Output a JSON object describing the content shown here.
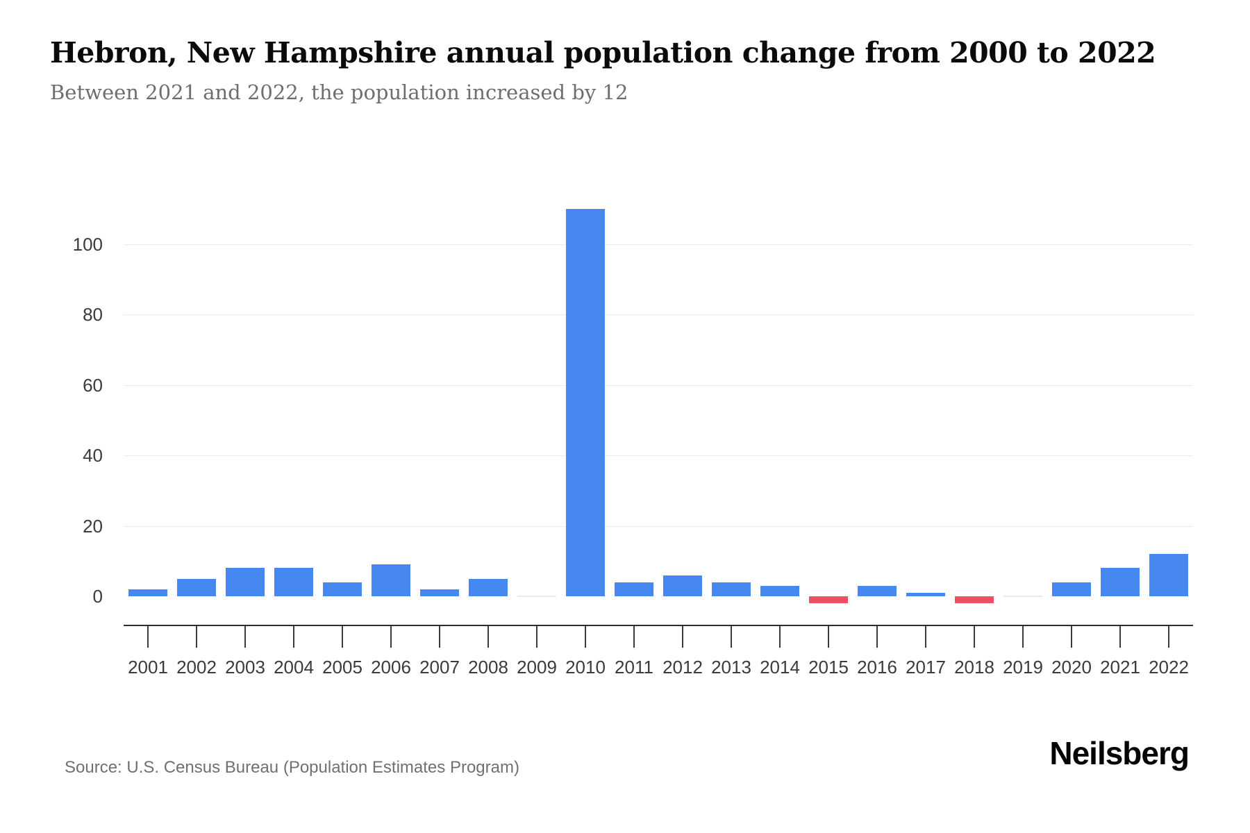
{
  "header": {
    "title": "Hebron, New Hampshire annual population change from 2000 to 2022",
    "subtitle": "Between 2021 and 2022, the population increased by 12"
  },
  "chart_data": {
    "type": "bar",
    "title": "Hebron, New Hampshire annual population change from 2000 to 2022",
    "xlabel": "",
    "ylabel": "",
    "categories": [
      "2001",
      "2002",
      "2003",
      "2004",
      "2005",
      "2006",
      "2007",
      "2008",
      "2009",
      "2010",
      "2011",
      "2012",
      "2013",
      "2014",
      "2015",
      "2016",
      "2017",
      "2018",
      "2019",
      "2020",
      "2021",
      "2022"
    ],
    "values": [
      2,
      5,
      8,
      8,
      4,
      9,
      2,
      5,
      0,
      110,
      4,
      6,
      4,
      3,
      -2,
      3,
      1,
      -2,
      0,
      4,
      8,
      12
    ],
    "yticks": [
      0,
      20,
      40,
      60,
      80,
      100
    ],
    "ylim": [
      -10,
      115
    ],
    "grid": "horizontal-light",
    "legend": "none",
    "colors": {
      "positive_bar": "#4687F0",
      "negative_bar": "#F04E63",
      "zero_bar": "#e9e9e9",
      "gridline": "#ebebeb",
      "axis": "#2e2e2e"
    }
  },
  "footer": {
    "source": "Source: U.S. Census Bureau (Population Estimates Program)",
    "logo": "Neilsberg"
  }
}
